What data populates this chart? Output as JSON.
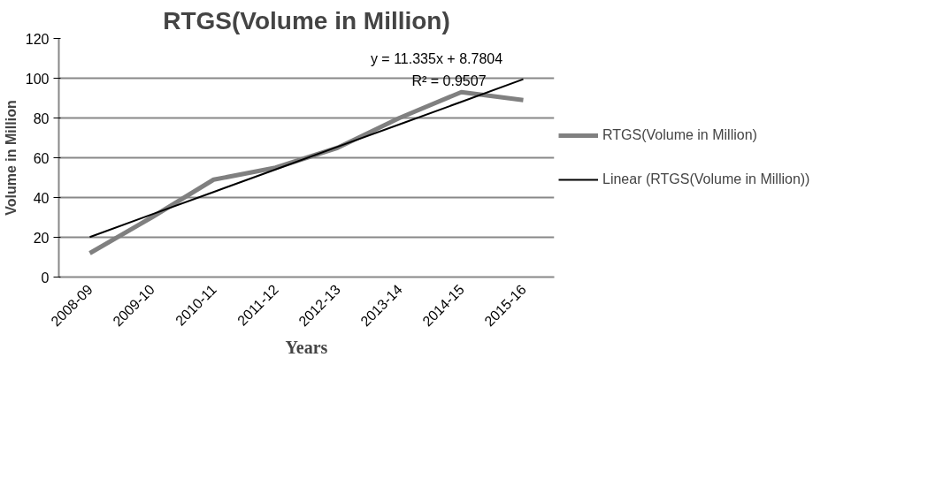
{
  "chart_data": {
    "type": "line",
    "title": "RTGS(Volume in Million)",
    "xlabel": "Years",
    "ylabel": "Volume in Million",
    "categories": [
      "2008-09",
      "2009-10",
      "2010-11",
      "2011-12",
      "2012-13",
      "2013-14",
      "2014-15",
      "2015-16"
    ],
    "series": [
      {
        "name": "RTGS(Volume in Million)",
        "color": "#808080",
        "values": [
          12,
          30,
          49,
          55,
          65,
          80,
          93,
          89
        ]
      },
      {
        "name": "Linear (RTGS(Volume in Million))",
        "color": "#000000",
        "values": [
          20.1,
          31.5,
          42.8,
          54.1,
          65.5,
          76.8,
          88.1,
          99.5
        ]
      }
    ],
    "annotations": [
      "y = 11.335x + 8.7804",
      "R² = 0.9507"
    ],
    "ylim": [
      0,
      120
    ],
    "yticks": [
      0,
      20,
      40,
      60,
      80,
      100,
      120
    ],
    "grid": "y",
    "legend": "right"
  }
}
